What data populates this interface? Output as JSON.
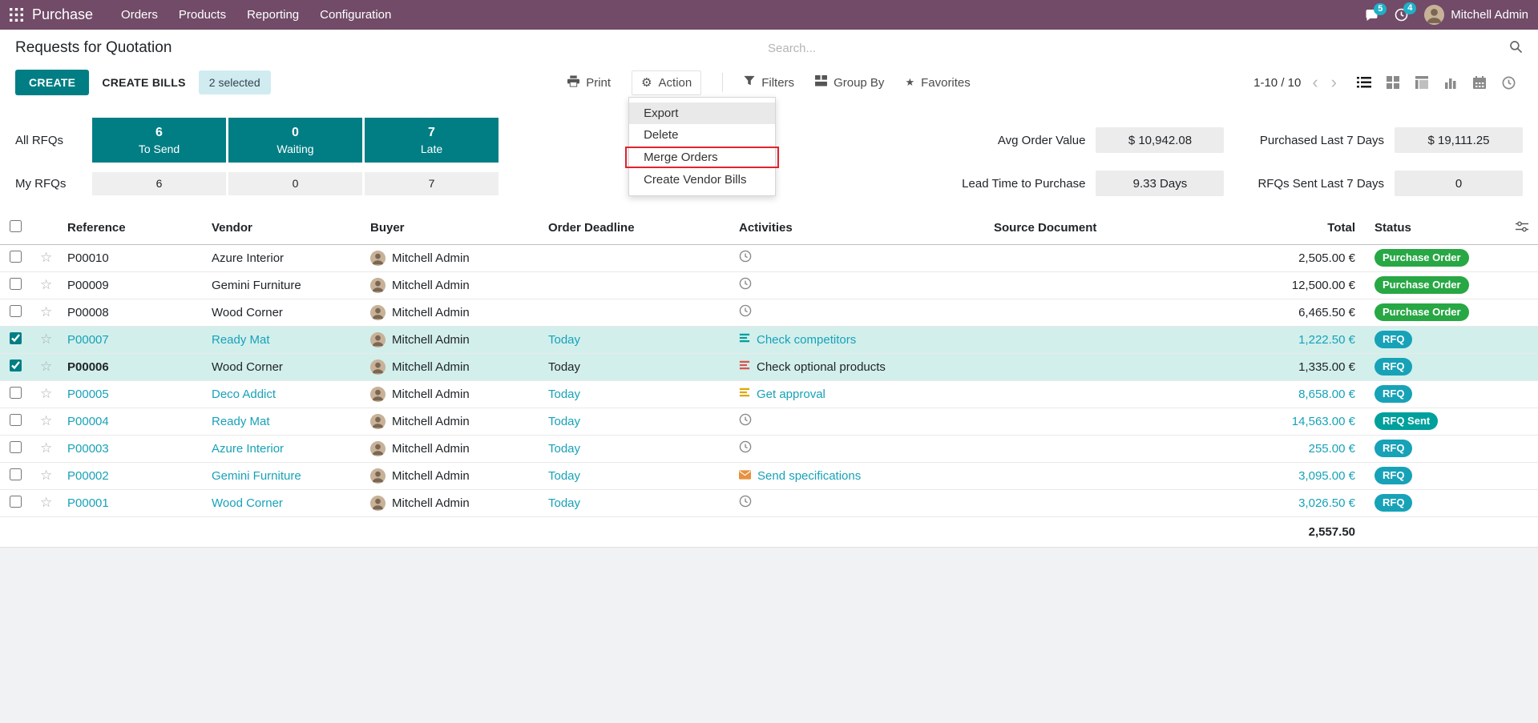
{
  "colors": {
    "navbar_bg": "#714B67",
    "accent": "#017E84",
    "info_text": "#17A2B8",
    "badge_rfq": "#17A2B8",
    "badge_rfq_sent": "#00A09D",
    "badge_purchase_order": "#28A745",
    "selected_row_bg": "#D2EFEC",
    "highlight_border": "#E0242E",
    "notification_badge": "#1FB0C8"
  },
  "icons": {
    "gear": "⚙",
    "favorites_star": "★",
    "star_outline": "☆",
    "chevron_left": "‹",
    "chevron_right": "›"
  },
  "navbar": {
    "app_name": "Purchase",
    "menus": [
      "Orders",
      "Products",
      "Reporting",
      "Configuration"
    ],
    "messages_badge": "5",
    "activities_badge": "4",
    "user_name": "Mitchell Admin"
  },
  "control_panel": {
    "title": "Requests for Quotation",
    "search_placeholder": "Search...",
    "create_label": "CREATE",
    "create_bills_label": "CREATE BILLS",
    "selected_label": "2 selected",
    "print_label": "Print",
    "action_label": "Action",
    "filters_label": "Filters",
    "group_by_label": "Group By",
    "favorites_label": "Favorites",
    "pager": "1-10 / 10"
  },
  "action_menu": {
    "items": [
      {
        "label": "Export",
        "hovered": true,
        "highlight": false
      },
      {
        "label": "Delete",
        "hovered": false,
        "highlight": false
      },
      {
        "label": "Merge Orders",
        "hovered": false,
        "highlight": true
      },
      {
        "label": "Create Vendor Bills",
        "hovered": false,
        "highlight": false
      }
    ]
  },
  "dashboard": {
    "all_label": "All RFQs",
    "my_label": "My RFQs",
    "kpis": [
      {
        "value": "6",
        "label": "To Send",
        "my_value": "6"
      },
      {
        "value": "0",
        "label": "Waiting",
        "my_value": "0"
      },
      {
        "value": "7",
        "label": "Late",
        "my_value": "7"
      }
    ],
    "stats": [
      {
        "label": "Avg Order Value",
        "value": "$ 10,942.08"
      },
      {
        "label": "Purchased Last 7 Days",
        "value": "$ 19,111.25"
      },
      {
        "label": "Lead Time to Purchase",
        "value": "9.33 Days"
      },
      {
        "label": "RFQs Sent Last 7 Days",
        "value": "0"
      }
    ]
  },
  "table": {
    "columns": [
      "Reference",
      "Vendor",
      "Buyer",
      "Order Deadline",
      "Activities",
      "Source Document",
      "Total",
      "Status"
    ],
    "footer_total": "2,557.50",
    "rows": [
      {
        "reference": "P00010",
        "vendor": "Azure Interior",
        "buyer": "Mitchell Admin",
        "deadline": "",
        "activity": {
          "icon": "clock-icon",
          "label": "",
          "color": "#8A8A8A"
        },
        "source": "",
        "total": "2,505.00 €",
        "status": {
          "label": "Purchase Order",
          "type": "purchase-order"
        },
        "selected": false,
        "style": "normal"
      },
      {
        "reference": "P00009",
        "vendor": "Gemini Furniture",
        "buyer": "Mitchell Admin",
        "deadline": "",
        "activity": {
          "icon": "clock-icon",
          "label": "",
          "color": "#8A8A8A"
        },
        "source": "",
        "total": "12,500.00 €",
        "status": {
          "label": "Purchase Order",
          "type": "purchase-order"
        },
        "selected": false,
        "style": "normal"
      },
      {
        "reference": "P00008",
        "vendor": "Wood Corner",
        "buyer": "Mitchell Admin",
        "deadline": "",
        "activity": {
          "icon": "clock-icon",
          "label": "",
          "color": "#8A8A8A"
        },
        "source": "",
        "total": "6,465.50 €",
        "status": {
          "label": "Purchase Order",
          "type": "purchase-order"
        },
        "selected": false,
        "style": "normal"
      },
      {
        "reference": "P00007",
        "vendor": "Ready Mat",
        "buyer": "Mitchell Admin",
        "deadline": "Today",
        "activity": {
          "icon": "tasks-icon",
          "label": "Check competitors",
          "color": "#00A09D"
        },
        "source": "",
        "total": "1,222.50 €",
        "status": {
          "label": "RFQ",
          "type": "rfq"
        },
        "selected": true,
        "style": "info"
      },
      {
        "reference": "P00006",
        "vendor": "Wood Corner",
        "buyer": "Mitchell Admin",
        "deadline": "Today",
        "activity": {
          "icon": "tasks-icon",
          "label": "Check optional products",
          "color": "#D9534F"
        },
        "source": "",
        "total": "1,335.00 €",
        "status": {
          "label": "RFQ",
          "type": "rfq"
        },
        "selected": true,
        "style": "bold"
      },
      {
        "reference": "P00005",
        "vendor": "Deco Addict",
        "buyer": "Mitchell Admin",
        "deadline": "Today",
        "activity": {
          "icon": "tasks-icon",
          "label": "Get approval",
          "color": "#E0A800"
        },
        "source": "",
        "total": "8,658.00 €",
        "status": {
          "label": "RFQ",
          "type": "rfq"
        },
        "selected": false,
        "style": "info"
      },
      {
        "reference": "P00004",
        "vendor": "Ready Mat",
        "buyer": "Mitchell Admin",
        "deadline": "Today",
        "activity": {
          "icon": "clock-icon",
          "label": "",
          "color": "#8A8A8A"
        },
        "source": "",
        "total": "14,563.00 €",
        "status": {
          "label": "RFQ Sent",
          "type": "rfq-sent"
        },
        "selected": false,
        "style": "info"
      },
      {
        "reference": "P00003",
        "vendor": "Azure Interior",
        "buyer": "Mitchell Admin",
        "deadline": "Today",
        "activity": {
          "icon": "clock-icon",
          "label": "",
          "color": "#8A8A8A"
        },
        "source": "",
        "total": "255.00 €",
        "status": {
          "label": "RFQ",
          "type": "rfq"
        },
        "selected": false,
        "style": "info"
      },
      {
        "reference": "P00002",
        "vendor": "Gemini Furniture",
        "buyer": "Mitchell Admin",
        "deadline": "Today",
        "activity": {
          "icon": "envelope-icon",
          "label": "Send specifications",
          "color": "#E8913F"
        },
        "source": "",
        "total": "3,095.00 €",
        "status": {
          "label": "RFQ",
          "type": "rfq"
        },
        "selected": false,
        "style": "info"
      },
      {
        "reference": "P00001",
        "vendor": "Wood Corner",
        "buyer": "Mitchell Admin",
        "deadline": "Today",
        "activity": {
          "icon": "clock-icon",
          "label": "",
          "color": "#8A8A8A"
        },
        "source": "",
        "total": "3,026.50 €",
        "status": {
          "label": "RFQ",
          "type": "rfq"
        },
        "selected": false,
        "style": "info"
      }
    ]
  }
}
